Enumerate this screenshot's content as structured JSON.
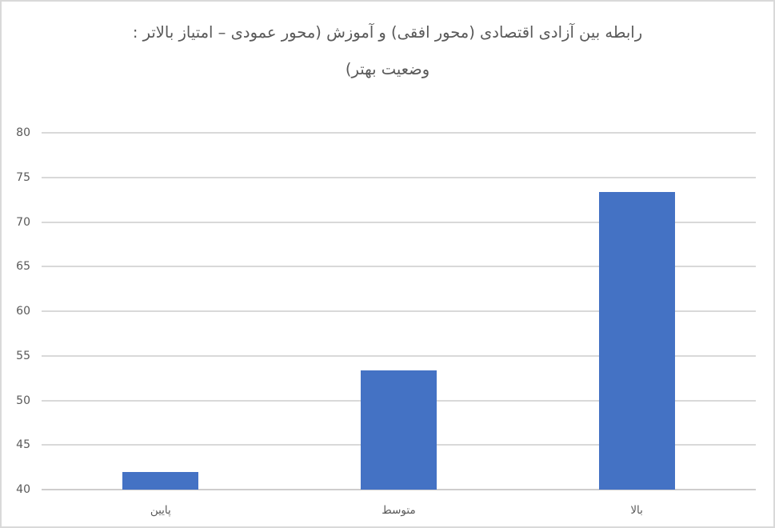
{
  "chart_data": {
    "type": "bar",
    "title": "رابطه بین آزادی اقتصادی (محور افقی) و آموزش (محور عمودی – امتیاز بالاتر : وضعیت بهتر)",
    "title_lines": [
      "رابطه بین آزادی اقتصادی (محور افقی) و آموزش (محور عمودی – امتیاز بالاتر :",
      "وضعیت بهتر)"
    ],
    "categories": [
      "پایین",
      "متوسط",
      "بالا"
    ],
    "values": [
      42,
      53.4,
      73.4
    ],
    "xlabel": "",
    "ylabel": "",
    "ylim": [
      40,
      80
    ],
    "ytick_step": 5,
    "yticks": [
      40,
      45,
      50,
      55,
      60,
      65,
      70,
      75,
      80
    ],
    "grid": true,
    "legend": false,
    "direction": "rtl",
    "colors": {
      "bar": "#4472C4",
      "gridline": "#D9D9D9",
      "axis_line": "#CFCDCD",
      "text": "#595959",
      "background": "#FFFFFF",
      "border": "#D9D9D9"
    }
  }
}
